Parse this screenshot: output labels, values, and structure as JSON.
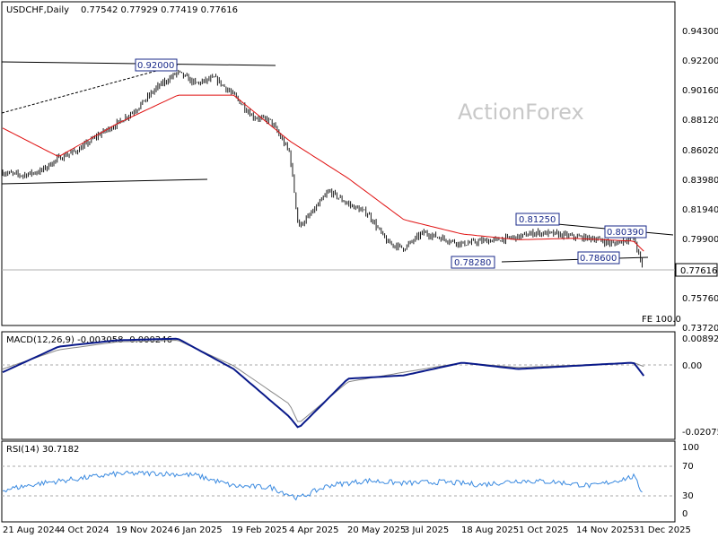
{
  "header": {
    "symbol": "USDCHF,Daily",
    "ohlc": "0.77542 0.77929 0.77419 0.77616"
  },
  "watermark": "ActionForex",
  "fe_label": "FE 100.0",
  "price_tag": "0.77616",
  "price_ticks": [
    "0.94300",
    "0.92200",
    "0.90160",
    "0.88120",
    "0.86020",
    "0.83980",
    "0.81940",
    "0.79900",
    "0.77616",
    "0.75760",
    "0.73720"
  ],
  "macd": {
    "title": "MACD(12,26,9) -0.003058 -0.000246",
    "ticks": [
      "0.008923",
      "0.00",
      "-0.020759"
    ]
  },
  "rsi": {
    "title": "RSI(14) 30.7182",
    "ticks": [
      "100",
      "70",
      "30",
      "0"
    ]
  },
  "date_ticks": [
    "21 Aug 2024",
    "4 Oct 2024",
    "19 Nov 2024",
    "6 Jan 2025",
    "19 Feb 2025",
    "4 Apr 2025",
    "20 May 2025",
    "3 Jul 2025",
    "18 Aug 2025",
    "1 Oct 2025",
    "14 Nov 2025",
    "31 Dec 2025"
  ],
  "colors": {
    "candles": "#1a1a1a",
    "ma": "#e01010",
    "macd_line": "#0a1a8a",
    "signal_line": "#888888",
    "rsi_line": "#3a8ae0",
    "box_border": "#1a2a8a"
  },
  "chart_data": {
    "type": "line",
    "series": [
      {
        "date": [
          "2024-08-21",
          "2024-09-05",
          "2024-09-20",
          "2024-10-04",
          "2024-10-20",
          "2024-11-04",
          "2024-11-19",
          "2024-12-04",
          "2024-12-20",
          "2025-01-06",
          "2025-01-20",
          "2025-02-04",
          "2025-02-19",
          "2025-03-06",
          "2025-03-20",
          "2025-04-04",
          "2025-04-11",
          "2025-04-20",
          "2025-05-05",
          "2025-05-20",
          "2025-06-05",
          "2025-06-20",
          "2025-07-03",
          "2025-07-18",
          "2025-08-02",
          "2025-08-18",
          "2025-09-02",
          "2025-09-16",
          "2025-10-01",
          "2025-10-15",
          "2025-10-30",
          "2025-11-14",
          "2025-11-29",
          "2025-12-15",
          "2025-12-31",
          "2026-01-08"
        ],
        "close": [
          0.846,
          0.844,
          0.847,
          0.856,
          0.862,
          0.872,
          0.88,
          0.89,
          0.905,
          0.916,
          0.908,
          0.912,
          0.9,
          0.885,
          0.882,
          0.86,
          0.808,
          0.816,
          0.833,
          0.824,
          0.817,
          0.797,
          0.793,
          0.804,
          0.8,
          0.796,
          0.798,
          0.799,
          0.801,
          0.804,
          0.803,
          0.801,
          0.8,
          0.796,
          0.801,
          0.7761
        ]
      },
      {
        "date": [
          "2024-08-21",
          "2024-10-04",
          "2024-11-19",
          "2025-01-06",
          "2025-02-19",
          "2025-04-04",
          "2025-05-20",
          "2025-07-03",
          "2025-08-18",
          "2025-10-01",
          "2025-11-14",
          "2025-12-31",
          "2026-01-08"
        ],
        "value": [
          0.877,
          0.857,
          0.88,
          0.9,
          0.9,
          0.868,
          0.842,
          0.813,
          0.803,
          0.799,
          0.8,
          0.798,
          0.791
        ]
      }
    ],
    "annotations": [
      "0.92000",
      "0.78280",
      "0.81250",
      "0.80390",
      "0.78600"
    ],
    "macd_series": {
      "date": [
        "2024-08-21",
        "2024-10-04",
        "2024-11-19",
        "2025-01-06",
        "2025-02-19",
        "2025-04-04",
        "2025-04-11",
        "2025-05-20",
        "2025-07-03",
        "2025-08-18",
        "2025-10-01",
        "2025-11-14",
        "2025-12-31",
        "2026-01-08"
      ],
      "macd": [
        -0.002,
        0.006,
        0.008,
        0.0085,
        -0.001,
        -0.016,
        -0.0195,
        -0.004,
        -0.003,
        0.001,
        -0.001,
        0.0,
        0.001,
        -0.0031
      ],
      "signal": [
        -0.001,
        0.005,
        0.0075,
        0.008,
        0.0,
        -0.012,
        -0.018,
        -0.005,
        -0.002,
        0.001,
        -0.0005,
        0.0002,
        0.001,
        -0.0002
      ]
    },
    "rsi_series": {
      "date": [
        "2024-08-21",
        "2024-09-20",
        "2024-10-20",
        "2024-11-19",
        "2024-12-20",
        "2025-01-20",
        "2025-02-19",
        "2025-03-20",
        "2025-04-11",
        "2025-05-05",
        "2025-06-05",
        "2025-07-03",
        "2025-08-02",
        "2025-09-02",
        "2025-10-01",
        "2025-10-30",
        "2025-11-29",
        "2025-12-31",
        "2026-01-08"
      ],
      "value": [
        38,
        48,
        55,
        62,
        63,
        60,
        44,
        42,
        26,
        45,
        52,
        48,
        50,
        46,
        52,
        50,
        44,
        58,
        30.7
      ]
    }
  }
}
